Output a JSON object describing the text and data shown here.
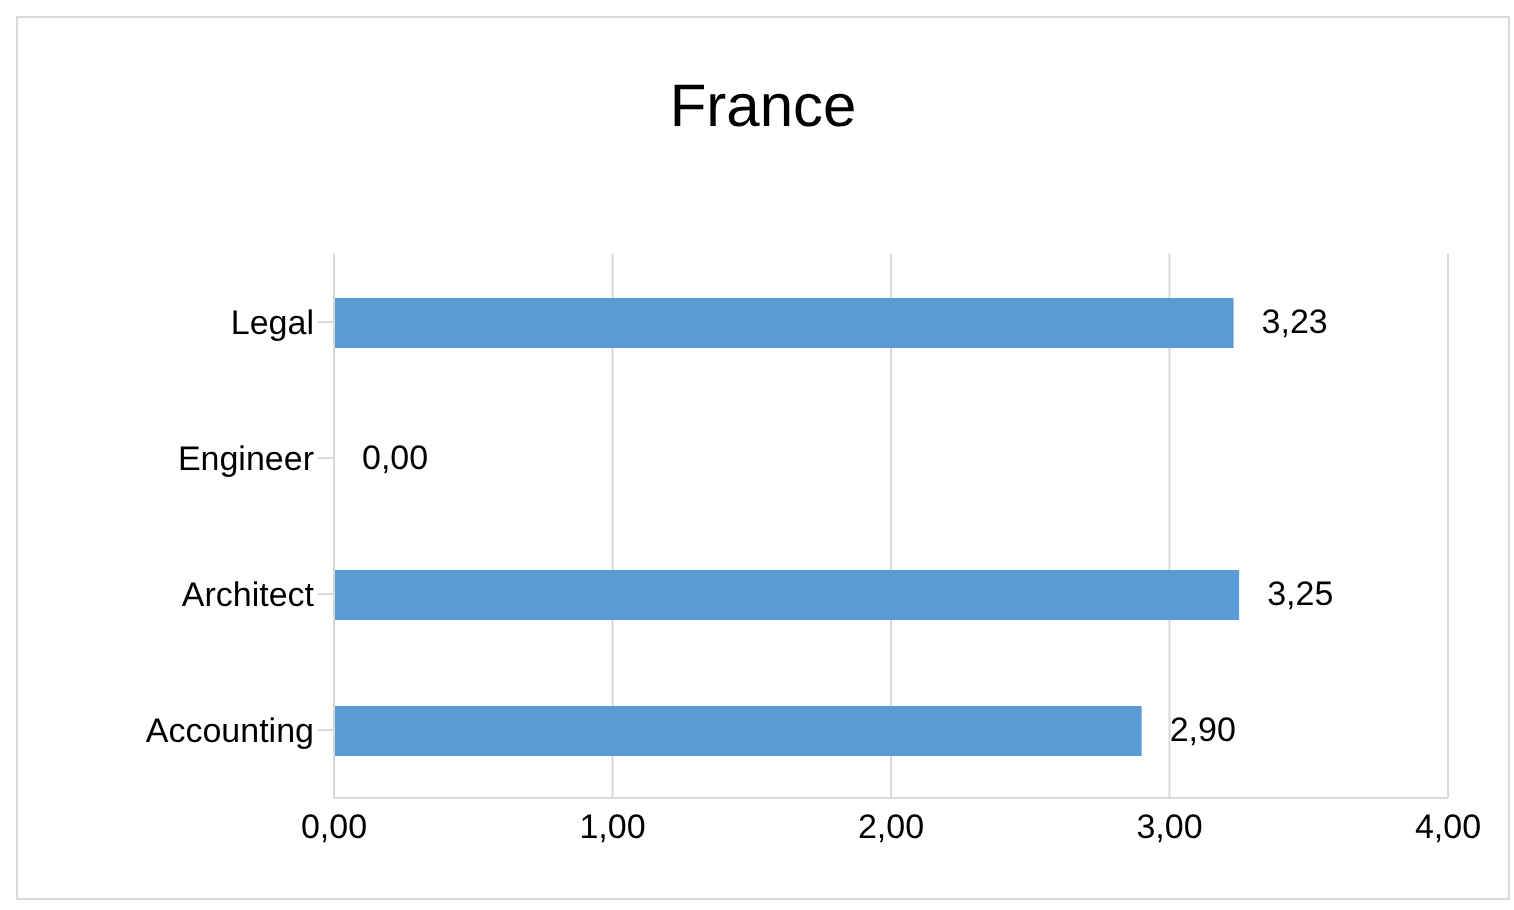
{
  "chart_data": {
    "type": "bar",
    "orientation": "horizontal",
    "title": "France",
    "categories": [
      "Legal",
      "Engineer",
      "Architect",
      "Accounting"
    ],
    "values": [
      3.23,
      0,
      3.25,
      2.9
    ],
    "value_labels": [
      "3,23",
      "0,00",
      "3,25",
      "2,90"
    ],
    "color": "#5b9bd5",
    "xlim": [
      0,
      4
    ],
    "xticks": [
      {
        "value": 0,
        "label": "0,00"
      },
      {
        "value": 1,
        "label": "1,00"
      },
      {
        "value": 2,
        "label": "2,00"
      },
      {
        "value": 3,
        "label": "3,00"
      },
      {
        "value": 4,
        "label": "4,00"
      }
    ],
    "grid": "x",
    "legend": false
  }
}
